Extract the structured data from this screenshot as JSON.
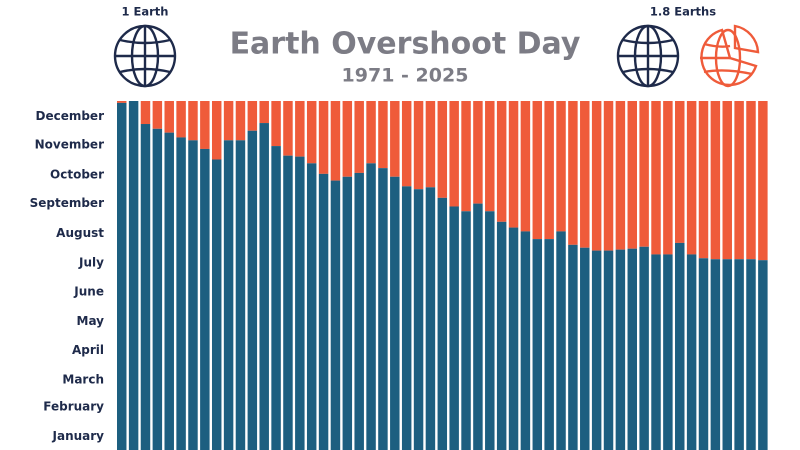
{
  "chart_data": {
    "type": "bar",
    "title": "Earth Overshoot Day",
    "subtitle": "1971 - 2025",
    "left_icon_label": "1 Earth",
    "right_icon_label": "1.8 Earths",
    "values": [
      363,
      365,
      341,
      336,
      332,
      327,
      324,
      315,
      304,
      324,
      324,
      334,
      342,
      318,
      308,
      307,
      300,
      289,
      282,
      286,
      290,
      300,
      295,
      286,
      276,
      273,
      275,
      264,
      255,
      250,
      258,
      250,
      239,
      233,
      229,
      221,
      221,
      229,
      215,
      212,
      209,
      209,
      210,
      211,
      213,
      205,
      205,
      217,
      205,
      201,
      200,
      200,
      200,
      200,
      199
    ],
    "color": "#1d5f80",
    "remainder_color": "#ef5b3a",
    "ylim": [
      0,
      365
    ],
    "yticks": [
      {
        "value": 15,
        "label": "January"
      },
      {
        "value": 46,
        "label": "February"
      },
      {
        "value": 74,
        "label": "March"
      },
      {
        "value": 105,
        "label": "April"
      },
      {
        "value": 135,
        "label": "May"
      },
      {
        "value": 166,
        "label": "June"
      },
      {
        "value": 196,
        "label": "July"
      },
      {
        "value": 227,
        "label": "August"
      },
      {
        "value": 258,
        "label": "September"
      },
      {
        "value": 288,
        "label": "October"
      },
      {
        "value": 319,
        "label": "November"
      },
      {
        "value": 349,
        "label": "December"
      }
    ]
  }
}
